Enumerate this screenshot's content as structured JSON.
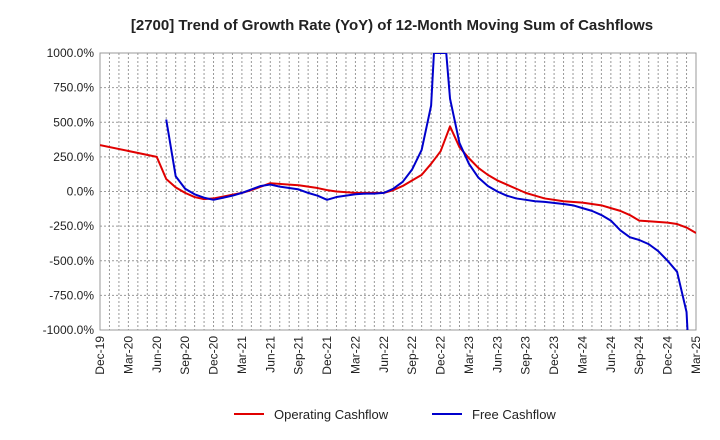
{
  "chart_data": {
    "type": "line",
    "title": "[2700]  Trend of Growth Rate (YoY) of 12-Month Moving Sum of Cashflows",
    "xlabel": "",
    "ylabel": "",
    "ylim": [
      -1000,
      1000
    ],
    "grid": true,
    "legend_position": "bottom",
    "y_ticks": [
      1000,
      750,
      500,
      250,
      0,
      -250,
      -500,
      -750,
      -1000
    ],
    "y_tick_labels": [
      "1000.0%",
      "750.0%",
      "500.0%",
      "250.0%",
      "0.0%",
      "-250.0%",
      "-500.0%",
      "-750.0%",
      "-1000.0%"
    ],
    "x_tick_labels": [
      "Dec-19",
      "Mar-20",
      "Jun-20",
      "Sep-20",
      "Dec-20",
      "Mar-21",
      "Jun-21",
      "Sep-21",
      "Dec-21",
      "Mar-22",
      "Jun-22",
      "Sep-22",
      "Dec-22",
      "Mar-23",
      "Jun-23",
      "Sep-23",
      "Dec-23",
      "Mar-24",
      "Jun-24",
      "Sep-24",
      "Dec-24",
      "Mar-25"
    ],
    "x_months_span": 63,
    "series": [
      {
        "name": "Operating Cashflow",
        "color": "#e00000",
        "points": [
          [
            0,
            335
          ],
          [
            6,
            250
          ],
          [
            7,
            90
          ],
          [
            8,
            30
          ],
          [
            9,
            -10
          ],
          [
            10,
            -40
          ],
          [
            11,
            -55
          ],
          [
            12,
            -50
          ],
          [
            15,
            -10
          ],
          [
            16,
            10
          ],
          [
            18,
            60
          ],
          [
            20,
            50
          ],
          [
            21,
            45
          ],
          [
            23,
            25
          ],
          [
            24,
            10
          ],
          [
            25,
            0
          ],
          [
            27,
            -10
          ],
          [
            29,
            -10
          ],
          [
            30,
            -10
          ],
          [
            31,
            10
          ],
          [
            32,
            40
          ],
          [
            33,
            80
          ],
          [
            34,
            120
          ],
          [
            35,
            200
          ],
          [
            36,
            290
          ],
          [
            37,
            470
          ],
          [
            38,
            320
          ],
          [
            39,
            240
          ],
          [
            40,
            170
          ],
          [
            41,
            120
          ],
          [
            42,
            80
          ],
          [
            43,
            50
          ],
          [
            44,
            20
          ],
          [
            45,
            -10
          ],
          [
            46,
            -30
          ],
          [
            47,
            -50
          ],
          [
            49,
            -70
          ],
          [
            51,
            -80
          ],
          [
            53,
            -100
          ],
          [
            54,
            -120
          ],
          [
            55,
            -140
          ],
          [
            56,
            -170
          ],
          [
            57,
            -210
          ],
          [
            58,
            -215
          ],
          [
            60,
            -225
          ],
          [
            61,
            -235
          ],
          [
            62,
            -260
          ],
          [
            63,
            -300
          ]
        ]
      },
      {
        "name": "Free Cashflow",
        "color": "#0000cc",
        "points": [
          [
            7,
            520
          ],
          [
            8,
            110
          ],
          [
            9,
            20
          ],
          [
            10,
            -20
          ],
          [
            11,
            -45
          ],
          [
            12,
            -60
          ],
          [
            13,
            -45
          ],
          [
            14,
            -30
          ],
          [
            15,
            -10
          ],
          [
            16,
            15
          ],
          [
            17,
            40
          ],
          [
            18,
            50
          ],
          [
            19,
            35
          ],
          [
            20,
            25
          ],
          [
            21,
            15
          ],
          [
            22,
            -10
          ],
          [
            23,
            -30
          ],
          [
            24,
            -60
          ],
          [
            25,
            -40
          ],
          [
            26,
            -30
          ],
          [
            27,
            -20
          ],
          [
            28,
            -15
          ],
          [
            29,
            -15
          ],
          [
            30,
            -10
          ],
          [
            31,
            20
          ],
          [
            32,
            70
          ],
          [
            33,
            160
          ],
          [
            34,
            300
          ],
          [
            35,
            620
          ],
          [
            35.3,
            1000
          ],
          [
            36.6,
            1000
          ],
          [
            37,
            670
          ],
          [
            38,
            350
          ],
          [
            39,
            200
          ],
          [
            40,
            100
          ],
          [
            41,
            40
          ],
          [
            42,
            0
          ],
          [
            43,
            -30
          ],
          [
            44,
            -50
          ],
          [
            45,
            -60
          ],
          [
            46,
            -70
          ],
          [
            47,
            -75
          ],
          [
            49,
            -90
          ],
          [
            50,
            -100
          ],
          [
            51,
            -120
          ],
          [
            52,
            -140
          ],
          [
            53,
            -170
          ],
          [
            54,
            -210
          ],
          [
            55,
            -280
          ],
          [
            56,
            -330
          ],
          [
            57,
            -350
          ],
          [
            58,
            -380
          ],
          [
            59,
            -430
          ],
          [
            60,
            -500
          ],
          [
            61,
            -580
          ],
          [
            62,
            -870
          ],
          [
            62.1,
            -1000
          ]
        ]
      }
    ]
  }
}
